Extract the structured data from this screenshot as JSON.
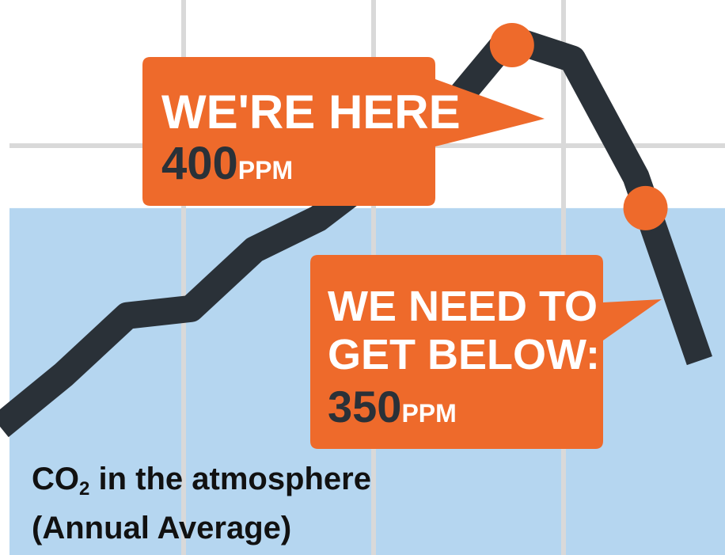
{
  "chart_data": {
    "type": "line",
    "title": "",
    "xlabel": "",
    "ylabel": "",
    "x": [
      0,
      1,
      2,
      3,
      4,
      5,
      6,
      7,
      8,
      9,
      10,
      11
    ],
    "series": [
      {
        "name": "",
        "values": [
          337,
          352,
          369,
          371,
          388,
          397,
          411,
          427,
          449,
          443,
          409,
          356
        ]
      }
    ],
    "ylim": [
      300,
      460
    ],
    "xlim": [
      0,
      11.4
    ],
    "shaded_region": {
      "y_from": 300,
      "y_to": 400
    },
    "markers": [
      {
        "x": 8.05,
        "y": 447,
        "label": "WE'RE HERE",
        "value": "400",
        "unit": "PPM"
      },
      {
        "x": 10.15,
        "y": 400,
        "label_lines": [
          "WE NEED TO",
          "GET BELOW:"
        ],
        "value": "350",
        "unit": "PPM"
      }
    ],
    "caption": {
      "line1_prefix": "CO",
      "line1_sub": "2",
      "line1_rest": " in the atmosphere",
      "line2": "(Annual Average)"
    },
    "grid": true,
    "legend": "none"
  },
  "colors": {
    "line": "#2a3138",
    "accent": "#ee6a2b",
    "band": "#b5d6f0",
    "grid": "#d9d9d9",
    "callout_text_light": "#ffffff",
    "callout_text_dark": "#2a3138"
  }
}
